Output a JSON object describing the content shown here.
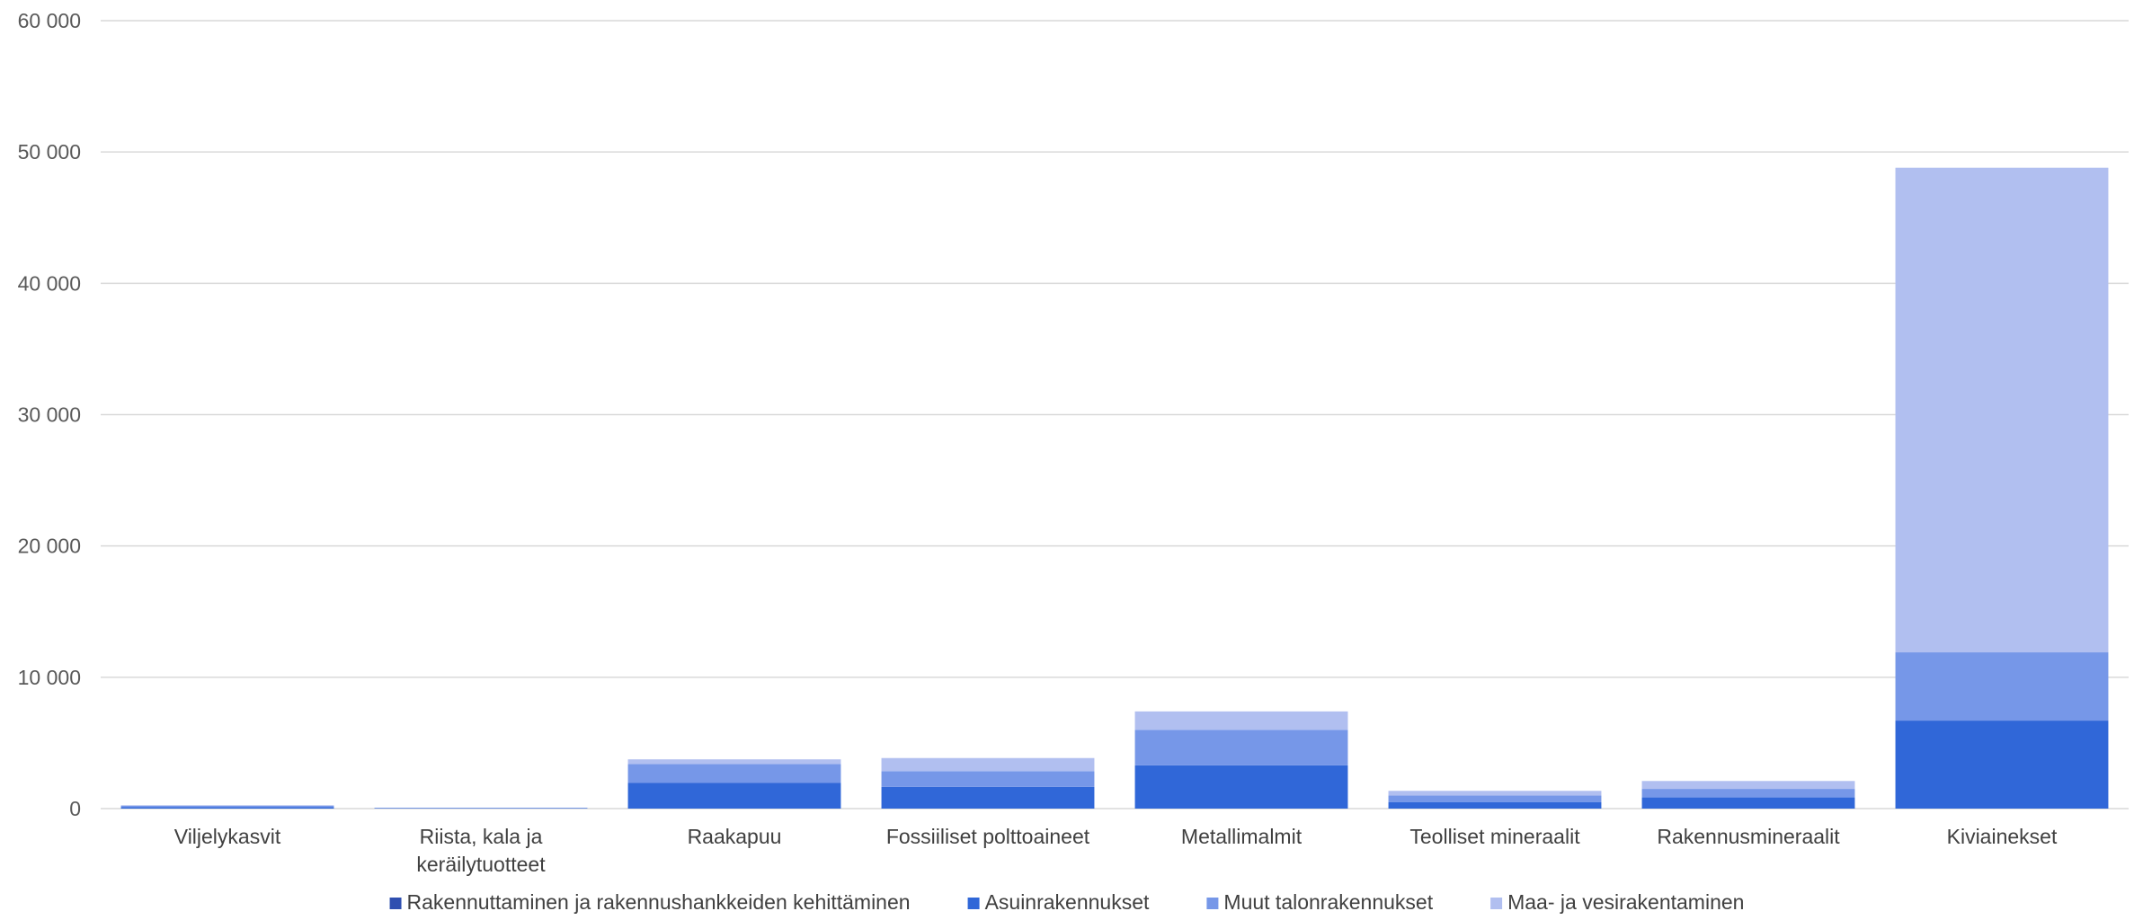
{
  "chart_data": {
    "type": "bar",
    "stacked": true,
    "title": "",
    "xlabel": "",
    "ylabel": "",
    "ylim": [
      0,
      60000
    ],
    "yticks": [
      0,
      10000,
      20000,
      30000,
      40000,
      50000,
      60000
    ],
    "ytick_labels": [
      "0",
      "10 000",
      "20 000",
      "30 000",
      "40 000",
      "50 000",
      "60 000"
    ],
    "grid": true,
    "legend_position": "bottom",
    "categories": [
      [
        "Viljelykasvit"
      ],
      [
        "Riista, kala ja",
        "keräilytuotteet"
      ],
      [
        "Raakapuu"
      ],
      [
        "Fossiiliset polttoaineet"
      ],
      [
        "Metallimalmit"
      ],
      [
        "Teolliset mineraalit"
      ],
      [
        "Rakennusmineraalit"
      ],
      [
        "Kiviainekset"
      ]
    ],
    "series": [
      {
        "name": "Rakennuttaminen ja rakennushankkeiden kehittäminen",
        "color": "#2f4fb0",
        "values": [
          0,
          0,
          0,
          0,
          0,
          0,
          0,
          0
        ]
      },
      {
        "name": "Asuinrakennukset",
        "color": "#3067d8",
        "values": [
          100,
          30,
          1950,
          1650,
          3300,
          500,
          850,
          6700
        ]
      },
      {
        "name": "Muut talonrakennukset",
        "color": "#7697e8",
        "values": [
          130,
          30,
          1450,
          1200,
          2700,
          500,
          650,
          5200
        ]
      },
      {
        "name": "Maa- ja vesirakentaminen",
        "color": "#b1bff0",
        "values": [
          20,
          10,
          350,
          1000,
          1400,
          350,
          600,
          36900
        ]
      }
    ]
  }
}
